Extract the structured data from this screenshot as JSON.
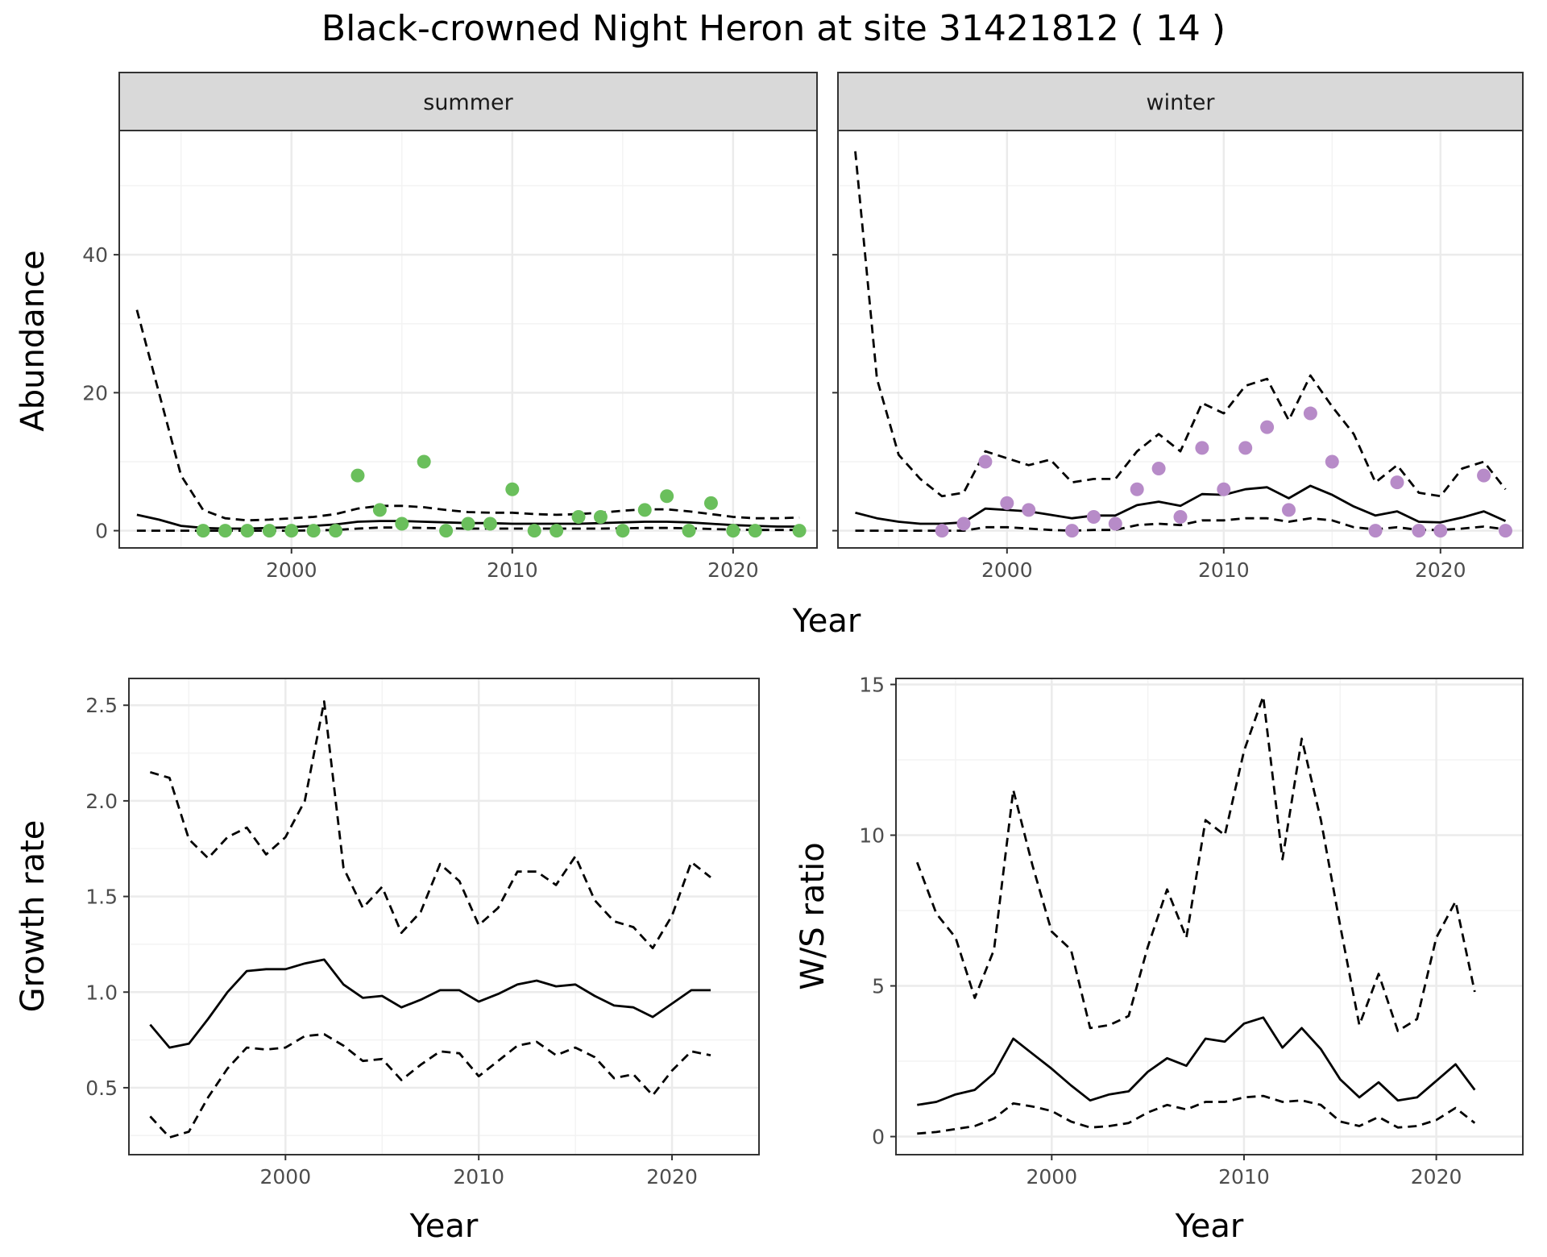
{
  "title": "Black-crowned Night Heron at site 31421812 ( 14 )",
  "colors": {
    "summer_points": "#6abf5c",
    "winter_points": "#b78bc8",
    "line": "#000000",
    "grid_major": "#ebebeb",
    "grid_minor": "#f3f3f3",
    "strip_fill": "#d9d9d9",
    "panel_border": "#333333"
  },
  "chart_data": [
    {
      "type": "line",
      "panel": "summer",
      "strip_label": "summer",
      "xlabel": "Year",
      "ylabel": "Abundance",
      "xlim": [
        1992.2,
        2023.8
      ],
      "ylim": [
        -2.5,
        58
      ],
      "xticks": [
        2000,
        2010,
        2020
      ],
      "yticks": [
        0,
        20,
        40
      ],
      "grid": true,
      "x": [
        1993,
        1994,
        1995,
        1996,
        1997,
        1998,
        1999,
        2000,
        2001,
        2002,
        2003,
        2004,
        2005,
        2006,
        2007,
        2008,
        2009,
        2010,
        2011,
        2012,
        2013,
        2014,
        2015,
        2016,
        2017,
        2018,
        2019,
        2020,
        2021,
        2022,
        2023
      ],
      "series": [
        {
          "role": "estimate",
          "dash": "solid",
          "values": [
            2.3,
            1.6,
            0.7,
            0.4,
            0.3,
            0.3,
            0.4,
            0.5,
            0.7,
            0.9,
            1.3,
            1.4,
            1.4,
            1.3,
            1.2,
            1.1,
            1.1,
            1.0,
            1.0,
            1.0,
            1.0,
            1.1,
            1.2,
            1.3,
            1.3,
            1.2,
            1.0,
            0.8,
            0.7,
            0.6,
            0.6
          ]
        },
        {
          "role": "upper",
          "dash": "dashed",
          "values": [
            32,
            20,
            8,
            3,
            1.8,
            1.5,
            1.6,
            1.8,
            2.0,
            2.4,
            3.2,
            3.6,
            3.6,
            3.4,
            3.0,
            2.7,
            2.6,
            2.6,
            2.4,
            2.3,
            2.4,
            2.6,
            2.9,
            3.1,
            3.1,
            2.8,
            2.4,
            2.0,
            1.8,
            1.8,
            1.9
          ]
        },
        {
          "role": "lower",
          "dash": "dashed",
          "values": [
            0,
            0,
            0,
            0,
            0,
            0,
            0,
            0,
            0.05,
            0.1,
            0.3,
            0.45,
            0.45,
            0.4,
            0.35,
            0.3,
            0.3,
            0.3,
            0.3,
            0.3,
            0.3,
            0.3,
            0.35,
            0.4,
            0.4,
            0.35,
            0.25,
            0.15,
            0.1,
            0.1,
            0.1
          ]
        }
      ],
      "points": {
        "x": [
          1996,
          1997,
          1998,
          1999,
          2000,
          2001,
          2002,
          2003,
          2004,
          2005,
          2006,
          2007,
          2008,
          2009,
          2010,
          2011,
          2012,
          2013,
          2014,
          2015,
          2016,
          2017,
          2018,
          2019,
          2020,
          2021,
          2023
        ],
        "y": [
          0,
          0,
          0,
          0,
          0,
          0,
          0,
          8,
          3,
          1,
          10,
          0,
          1,
          1,
          6,
          0,
          0,
          2,
          2,
          0,
          3,
          5,
          0,
          4,
          0,
          0,
          0
        ]
      }
    },
    {
      "type": "line",
      "panel": "winter",
      "strip_label": "winter",
      "xlabel": "Year",
      "ylabel": "Abundance",
      "xlim": [
        1992.2,
        2023.8
      ],
      "ylim": [
        -2.5,
        58
      ],
      "xticks": [
        2000,
        2010,
        2020
      ],
      "yticks": [
        0,
        20,
        40
      ],
      "grid": true,
      "x": [
        1993,
        1994,
        1995,
        1996,
        1997,
        1998,
        1999,
        2000,
        2001,
        2002,
        2003,
        2004,
        2005,
        2006,
        2007,
        2008,
        2009,
        2010,
        2011,
        2012,
        2013,
        2014,
        2015,
        2016,
        2017,
        2018,
        2019,
        2020,
        2021,
        2022,
        2023
      ],
      "series": [
        {
          "role": "estimate",
          "dash": "solid",
          "values": [
            2.6,
            1.8,
            1.3,
            1.0,
            1.0,
            1.2,
            3.2,
            3.0,
            2.8,
            2.3,
            1.8,
            2.2,
            2.2,
            3.7,
            4.2,
            3.6,
            5.3,
            5.2,
            6.0,
            6.3,
            4.7,
            6.5,
            5.2,
            3.5,
            2.2,
            2.8,
            1.3,
            1.2,
            1.9,
            2.8,
            1.4
          ]
        },
        {
          "role": "upper",
          "dash": "dashed",
          "values": [
            55,
            22,
            11,
            7.5,
            5,
            5.5,
            11.5,
            10.5,
            9.5,
            10.3,
            7,
            7.5,
            7.5,
            11.5,
            14,
            11.5,
            18.5,
            17,
            21,
            22,
            16,
            22.5,
            18,
            14,
            7,
            9.5,
            5.5,
            5,
            9,
            10,
            6
          ]
        },
        {
          "role": "lower",
          "dash": "dashed",
          "values": [
            0,
            0,
            0,
            0,
            0,
            0,
            0.5,
            0.5,
            0.3,
            0.1,
            0,
            0.1,
            0.1,
            0.8,
            1.0,
            0.8,
            1.5,
            1.5,
            1.8,
            1.8,
            1.3,
            1.8,
            1.5,
            0.5,
            0.2,
            0.5,
            0.1,
            0.1,
            0.3,
            0.6,
            0.2
          ]
        }
      ],
      "points": {
        "x": [
          1997,
          1998,
          1999,
          2000,
          2001,
          2003,
          2004,
          2005,
          2006,
          2007,
          2008,
          2009,
          2010,
          2011,
          2012,
          2013,
          2014,
          2015,
          2017,
          2018,
          2019,
          2020,
          2022,
          2023
        ],
        "y": [
          0,
          1,
          10,
          4,
          3,
          0,
          2,
          1,
          6,
          9,
          2,
          12,
          6,
          12,
          15,
          3,
          17,
          10,
          0,
          7,
          0,
          0,
          8,
          0
        ]
      }
    },
    {
      "type": "line",
      "panel": "growth",
      "xlabel": "Year",
      "ylabel": "Growth rate",
      "xlim": [
        1991.9,
        2024.5
      ],
      "ylim": [
        0.15,
        2.64
      ],
      "xticks": [
        2000,
        2010,
        2020
      ],
      "yticks": [
        0.5,
        1.0,
        1.5,
        2.0,
        2.5
      ],
      "ytick_labels": [
        "0.5",
        "1.0",
        "1.5",
        "2.0",
        "2.5"
      ],
      "grid": true,
      "x": [
        1993,
        1994,
        1995,
        1996,
        1997,
        1998,
        1999,
        2000,
        2001,
        2002,
        2003,
        2004,
        2005,
        2006,
        2007,
        2008,
        2009,
        2010,
        2011,
        2012,
        2013,
        2014,
        2015,
        2016,
        2017,
        2018,
        2019,
        2020,
        2021,
        2022
      ],
      "series": [
        {
          "role": "estimate",
          "dash": "solid",
          "values": [
            0.83,
            0.71,
            0.73,
            0.86,
            1.0,
            1.11,
            1.12,
            1.12,
            1.15,
            1.17,
            1.04,
            0.97,
            0.98,
            0.92,
            0.96,
            1.01,
            1.01,
            0.95,
            0.99,
            1.04,
            1.06,
            1.03,
            1.04,
            0.98,
            0.93,
            0.92,
            0.87,
            0.94,
            1.01,
            1.01
          ]
        },
        {
          "role": "upper",
          "dash": "dashed",
          "values": [
            2.15,
            2.12,
            1.8,
            1.7,
            1.81,
            1.86,
            1.72,
            1.81,
            2.0,
            2.52,
            1.65,
            1.44,
            1.55,
            1.31,
            1.42,
            1.67,
            1.58,
            1.35,
            1.44,
            1.63,
            1.63,
            1.56,
            1.71,
            1.48,
            1.37,
            1.34,
            1.23,
            1.4,
            1.68,
            1.6
          ]
        },
        {
          "role": "lower",
          "dash": "dashed",
          "values": [
            0.35,
            0.24,
            0.27,
            0.45,
            0.6,
            0.71,
            0.7,
            0.71,
            0.77,
            0.78,
            0.72,
            0.64,
            0.65,
            0.54,
            0.62,
            0.69,
            0.68,
            0.56,
            0.64,
            0.72,
            0.74,
            0.67,
            0.71,
            0.66,
            0.55,
            0.57,
            0.46,
            0.59,
            0.69,
            0.67
          ]
        }
      ]
    },
    {
      "type": "line",
      "panel": "ratio",
      "xlabel": "Year",
      "ylabel": "W/S ratio",
      "xlim": [
        1991.9,
        2024.5
      ],
      "ylim": [
        -0.6,
        15.2
      ],
      "xticks": [
        2000,
        2010,
        2020
      ],
      "yticks": [
        0,
        5,
        10,
        15
      ],
      "grid": true,
      "x": [
        1993,
        1994,
        1995,
        1996,
        1997,
        1998,
        1999,
        2000,
        2001,
        2002,
        2003,
        2004,
        2005,
        2006,
        2007,
        2008,
        2009,
        2010,
        2011,
        2012,
        2013,
        2014,
        2015,
        2016,
        2017,
        2018,
        2019,
        2020,
        2021,
        2022
      ],
      "series": [
        {
          "role": "estimate",
          "dash": "solid",
          "values": [
            1.05,
            1.15,
            1.4,
            1.55,
            2.1,
            3.25,
            2.75,
            2.25,
            1.7,
            1.2,
            1.4,
            1.5,
            2.15,
            2.6,
            2.35,
            3.25,
            3.15,
            3.75,
            3.95,
            2.95,
            3.6,
            2.9,
            1.9,
            1.3,
            1.8,
            1.2,
            1.3,
            1.85,
            2.4,
            1.55
          ]
        },
        {
          "role": "upper",
          "dash": "dashed",
          "values": [
            9.1,
            7.4,
            6.6,
            4.6,
            6.2,
            11.5,
            9.0,
            6.8,
            6.2,
            3.6,
            3.7,
            4.0,
            6.3,
            8.2,
            6.6,
            10.5,
            10.0,
            12.8,
            14.6,
            9.2,
            13.2,
            10.5,
            7.0,
            3.7,
            5.4,
            3.5,
            3.9,
            6.6,
            7.8,
            4.8
          ]
        },
        {
          "role": "lower",
          "dash": "dashed",
          "values": [
            0.1,
            0.15,
            0.25,
            0.35,
            0.6,
            1.1,
            1.0,
            0.85,
            0.5,
            0.3,
            0.35,
            0.45,
            0.8,
            1.05,
            0.9,
            1.15,
            1.15,
            1.3,
            1.35,
            1.15,
            1.2,
            1.05,
            0.5,
            0.35,
            0.65,
            0.3,
            0.35,
            0.55,
            0.95,
            0.45
          ]
        }
      ]
    }
  ]
}
